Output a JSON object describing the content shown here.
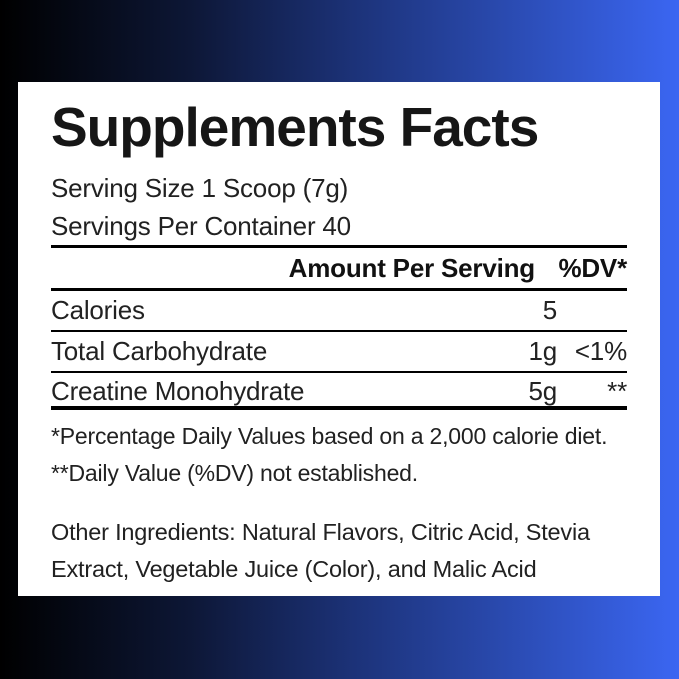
{
  "colors": {
    "background_gradient_left": "#000000",
    "background_gradient_right": "#3b66f2",
    "card_background": "#ffffff",
    "text": "#1d1d1d",
    "rule": "#000000"
  },
  "panel": {
    "title": "Supplements Facts",
    "serving_size": "Serving Size 1 Scoop (7g)",
    "servings_per_container": "Servings Per Container 40",
    "table": {
      "header": {
        "amount_label": "Amount Per Serving",
        "dv_label": "%DV*"
      },
      "rows": [
        {
          "name": "Calories",
          "amount": "5",
          "dv": ""
        },
        {
          "name": "Total Carbohydrate",
          "amount": "1g",
          "dv": "<1%"
        },
        {
          "name": "Creatine Monohydrate",
          "amount": "5g",
          "dv": "**"
        }
      ]
    },
    "footnotes": [
      "*Percentage Daily Values based on a 2,000 calorie diet.",
      "**Daily Value (%DV) not established."
    ],
    "other_ingredients_lines": [
      "Other Ingredients: Natural Flavors, Citric Acid, Stevia",
      "Extract, Vegetable Juice (Color), and Malic Acid"
    ]
  }
}
